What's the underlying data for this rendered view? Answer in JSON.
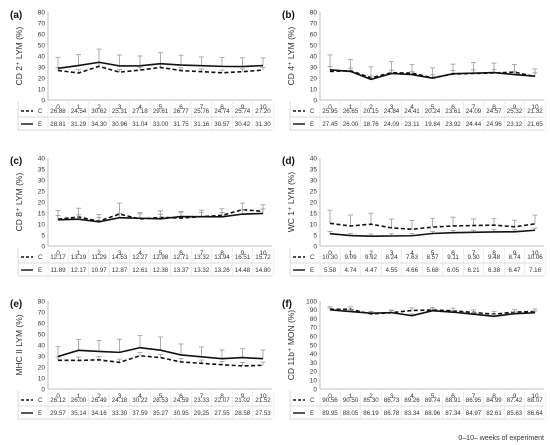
{
  "footnote": "0–10– weeks of experiment",
  "chart_data": [
    {
      "panel": "(a)",
      "type": "line",
      "ylabel": "CD 2⁺ LYM (%)",
      "ylim": [
        0,
        80
      ],
      "yticks": [
        0,
        10,
        20,
        30,
        40,
        50,
        60,
        70,
        80
      ],
      "categories": [
        "0",
        "1",
        "2",
        "3",
        "4",
        "5",
        "6",
        "7",
        "8",
        "9",
        "10"
      ],
      "series": [
        {
          "name": "C",
          "style": "dashed",
          "values": [
            26.88,
            24.54,
            30.62,
            25.31,
            27.18,
            29.61,
            26.77,
            25.76,
            24.74,
            25.74,
            27.2
          ],
          "errors": [
            2.5,
            3.0,
            3.0,
            2.5,
            2.5,
            3.0,
            2.5,
            2.5,
            2.5,
            2.5,
            2.5
          ]
        },
        {
          "name": "E",
          "style": "solid",
          "values": [
            28.81,
            31.29,
            34.3,
            30.96,
            31.04,
            33.0,
            31.75,
            31.16,
            30.57,
            30.42,
            31.3
          ],
          "errors": [
            10,
            10,
            12,
            10,
            9,
            10,
            9,
            8,
            8,
            8,
            7
          ]
        }
      ]
    },
    {
      "panel": "(b)",
      "type": "line",
      "ylabel": "CD 4⁺ LYM (%)",
      "ylim": [
        0,
        80
      ],
      "yticks": [
        0,
        10,
        20,
        30,
        40,
        50,
        60,
        70,
        80
      ],
      "categories": [
        "0",
        "1",
        "2",
        "3",
        "4",
        "5",
        "6",
        "7",
        "8",
        "9",
        "10"
      ],
      "series": [
        {
          "name": "C",
          "style": "dashed",
          "values": [
            25.95,
            26.65,
            20.15,
            24.84,
            24.41,
            20.24,
            23.61,
            24.09,
            24.57,
            25.32,
            21.32
          ],
          "errors": [
            15,
            10,
            10,
            10,
            8,
            9,
            9,
            10,
            9,
            7,
            7
          ]
        },
        {
          "name": "E",
          "style": "solid",
          "values": [
            27.45,
            26.0,
            18.76,
            24.09,
            23.11,
            19.84,
            23.92,
            24.44,
            24.96,
            23.12,
            21.65
          ],
          "errors": [
            3,
            3,
            3,
            3,
            3,
            3,
            3,
            3,
            3,
            3,
            3
          ]
        }
      ]
    },
    {
      "panel": "(c)",
      "type": "line",
      "ylabel": "CD 8⁺ LYM (%)",
      "ylim": [
        0,
        40
      ],
      "yticks": [
        0,
        5,
        10,
        15,
        20,
        25,
        30,
        35,
        40
      ],
      "categories": [
        "0",
        "1",
        "2",
        "3",
        "4",
        "5",
        "6",
        "7",
        "8",
        "9",
        "10"
      ],
      "series": [
        {
          "name": "C",
          "style": "dashed",
          "values": [
            12.17,
            13.19,
            11.29,
            14.53,
            12.27,
            12.98,
            12.71,
            13.32,
            13.94,
            16.51,
            15.72
          ],
          "errors": [
            4,
            4,
            3,
            5,
            3,
            3,
            3,
            3,
            3,
            3,
            3
          ]
        },
        {
          "name": "E",
          "style": "solid",
          "values": [
            11.89,
            12.17,
            10.97,
            12.87,
            12.61,
            12.38,
            13.37,
            13.32,
            13.26,
            14.48,
            14.8
          ],
          "errors": [
            2,
            2,
            2,
            2,
            2,
            2,
            2,
            2,
            2,
            2,
            2
          ]
        }
      ]
    },
    {
      "panel": "(d)",
      "type": "line",
      "ylabel": "WC 1⁺ LYM (%)",
      "ylim": [
        0,
        40
      ],
      "yticks": [
        0,
        5,
        10,
        15,
        20,
        25,
        30,
        35,
        40
      ],
      "categories": [
        "0",
        "1",
        "2",
        "3",
        "4",
        "5",
        "6",
        "7",
        "8",
        "9",
        "10"
      ],
      "series": [
        {
          "name": "C",
          "style": "dashed",
          "values": [
            10.3,
            9.09,
            9.92,
            8.24,
            7.63,
            8.57,
            9.11,
            9.3,
            9.48,
            8.74,
            10.06
          ],
          "errors": [
            6,
            5,
            5,
            4,
            4,
            4,
            4,
            3,
            3,
            3,
            4
          ]
        },
        {
          "name": "E",
          "style": "solid",
          "values": [
            5.58,
            4.74,
            4.47,
            4.55,
            4.66,
            5.68,
            6.05,
            6.21,
            6.38,
            6.47,
            7.16
          ],
          "errors": [
            1,
            1,
            1,
            1,
            1,
            1,
            1,
            1,
            1,
            1,
            1
          ]
        }
      ]
    },
    {
      "panel": "(e)",
      "type": "line",
      "ylabel": "MHC II LYM (%)",
      "ylim": [
        0,
        80
      ],
      "yticks": [
        0,
        10,
        20,
        30,
        40,
        50,
        60,
        70,
        80
      ],
      "categories": [
        "0",
        "1",
        "2",
        "3",
        "4",
        "5",
        "6",
        "7",
        "8",
        "9",
        "10"
      ],
      "series": [
        {
          "name": "C",
          "style": "dashed",
          "values": [
            26.12,
            26.0,
            26.49,
            24.18,
            30.22,
            28.53,
            24.59,
            23.33,
            22.07,
            21.02,
            21.52
          ],
          "errors": [
            3,
            3,
            3,
            3,
            3,
            3,
            3,
            3,
            3,
            3,
            3
          ]
        },
        {
          "name": "E",
          "style": "solid",
          "values": [
            29.57,
            35.14,
            34.16,
            33.3,
            37.59,
            35.27,
            30.95,
            29.25,
            27.55,
            28.58,
            27.53
          ],
          "errors": [
            9,
            10,
            10,
            12,
            11,
            12,
            10,
            9,
            8,
            8,
            8
          ]
        }
      ]
    },
    {
      "panel": "(f)",
      "type": "line",
      "ylabel": "CD 11b⁺ MON (%)",
      "ylim": [
        0,
        100
      ],
      "yticks": [
        0,
        10,
        20,
        30,
        40,
        50,
        60,
        70,
        80,
        90,
        100
      ],
      "categories": [
        "0",
        "1",
        "2",
        "3",
        "4",
        "5",
        "6",
        "7",
        "8",
        "9",
        "10"
      ],
      "series": [
        {
          "name": "C",
          "style": "dashed",
          "values": [
            90.56,
            90.5,
            85.3,
            86.73,
            89.26,
            89.74,
            88.91,
            86.95,
            84.99,
            87.42,
            88.07
          ],
          "errors": [
            3,
            3,
            3,
            3,
            3,
            3,
            3,
            3,
            3,
            3,
            3
          ]
        },
        {
          "name": "E",
          "style": "solid",
          "values": [
            89.95,
            88.05,
            86.19,
            86.78,
            83.34,
            88.96,
            87.34,
            84.97,
            82.61,
            85.63,
            86.64
          ],
          "errors": [
            2,
            2,
            2,
            2,
            2,
            2,
            2,
            2,
            2,
            2,
            2
          ]
        }
      ]
    }
  ]
}
